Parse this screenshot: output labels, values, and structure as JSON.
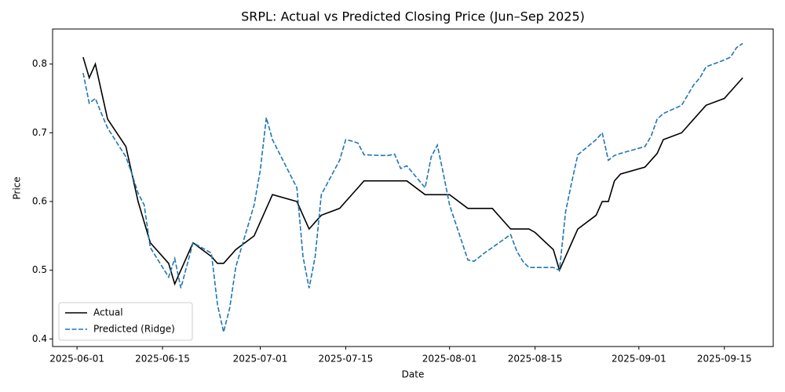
{
  "chart_data": {
    "type": "line",
    "title": "SRPL: Actual vs Predicted Closing Price (Jun–Sep 2025)",
    "x_label": "Date",
    "y_label": "Price",
    "x": [
      "2025-06-02",
      "2025-06-03",
      "2025-06-04",
      "2025-06-05",
      "2025-06-06",
      "2025-06-09",
      "2025-06-10",
      "2025-06-11",
      "2025-06-12",
      "2025-06-13",
      "2025-06-16",
      "2025-06-17",
      "2025-06-18",
      "2025-06-20",
      "2025-06-23",
      "2025-06-24",
      "2025-06-25",
      "2025-06-26",
      "2025-06-27",
      "2025-06-30",
      "2025-07-01",
      "2025-07-02",
      "2025-07-03",
      "2025-07-07",
      "2025-07-08",
      "2025-07-09",
      "2025-07-10",
      "2025-07-11",
      "2025-07-14",
      "2025-07-15",
      "2025-07-16",
      "2025-07-17",
      "2025-07-18",
      "2025-07-21",
      "2025-07-22",
      "2025-07-23",
      "2025-07-24",
      "2025-07-25",
      "2025-07-28",
      "2025-07-29",
      "2025-07-30",
      "2025-07-31",
      "2025-08-01",
      "2025-08-04",
      "2025-08-05",
      "2025-08-06",
      "2025-08-07",
      "2025-08-08",
      "2025-08-11",
      "2025-08-12",
      "2025-08-13",
      "2025-08-14",
      "2025-08-15",
      "2025-08-18",
      "2025-08-19",
      "2025-08-20",
      "2025-08-21",
      "2025-08-22",
      "2025-08-25",
      "2025-08-26",
      "2025-08-27",
      "2025-08-28",
      "2025-08-29",
      "2025-09-02",
      "2025-09-03",
      "2025-09-04",
      "2025-09-05",
      "2025-09-08",
      "2025-09-09",
      "2025-09-10",
      "2025-09-11",
      "2025-09-12",
      "2025-09-15",
      "2025-09-16",
      "2025-09-17",
      "2025-09-18"
    ],
    "series": [
      {
        "name": "Actual",
        "color": "#000000",
        "linestyle": "solid",
        "values": [
          0.81,
          0.78,
          0.8,
          0.76,
          0.72,
          0.68,
          0.64,
          0.6,
          0.57,
          0.54,
          0.51,
          0.48,
          0.5,
          0.54,
          0.52,
          0.51,
          0.51,
          0.52,
          0.53,
          0.55,
          0.57,
          0.59,
          0.61,
          0.6,
          0.58,
          0.56,
          0.57,
          0.58,
          0.59,
          0.6,
          0.61,
          0.62,
          0.63,
          0.63,
          0.63,
          0.63,
          0.63,
          0.63,
          0.61,
          0.61,
          0.61,
          0.61,
          0.61,
          0.59,
          0.59,
          0.59,
          0.59,
          0.59,
          0.56,
          0.56,
          0.56,
          0.56,
          0.555,
          0.53,
          0.5,
          0.52,
          0.54,
          0.56,
          0.58,
          0.6,
          0.6,
          0.63,
          0.64,
          0.65,
          0.66,
          0.67,
          0.69,
          0.7,
          0.71,
          0.72,
          0.73,
          0.74,
          0.75,
          0.76,
          0.77,
          0.78
        ]
      },
      {
        "name": "Predicted (Ridge)",
        "color": "#1f77b4",
        "linestyle": "dashed",
        "values": [
          0.787,
          0.743,
          0.75,
          0.728,
          0.707,
          0.665,
          0.64,
          0.612,
          0.595,
          0.533,
          0.49,
          0.517,
          0.474,
          0.54,
          0.525,
          0.45,
          0.41,
          0.445,
          0.505,
          0.595,
          0.645,
          0.722,
          0.69,
          0.62,
          0.52,
          0.474,
          0.52,
          0.61,
          0.66,
          0.69,
          0.688,
          0.685,
          0.668,
          0.667,
          0.667,
          0.669,
          0.648,
          0.652,
          0.62,
          0.665,
          0.682,
          0.64,
          0.595,
          0.515,
          0.513,
          0.52,
          0.527,
          0.533,
          0.552,
          0.528,
          0.513,
          0.504,
          0.504,
          0.504,
          0.5,
          0.585,
          0.628,
          0.668,
          0.69,
          0.7,
          0.66,
          0.667,
          0.67,
          0.68,
          0.695,
          0.72,
          0.728,
          0.74,
          0.755,
          0.77,
          0.78,
          0.796,
          0.806,
          0.81,
          0.824,
          0.83
        ]
      }
    ],
    "xlim": [
      "2025-05-28",
      "2025-09-23"
    ],
    "xticks": [
      "2025-06-01",
      "2025-06-15",
      "2025-07-01",
      "2025-07-15",
      "2025-08-01",
      "2025-08-15",
      "2025-09-01",
      "2025-09-15"
    ],
    "ylim": [
      0.389,
      0.851
    ],
    "yticks": [
      0.4,
      0.5,
      0.6,
      0.7,
      0.8
    ],
    "grid": false,
    "legend_position": "lower-left"
  }
}
